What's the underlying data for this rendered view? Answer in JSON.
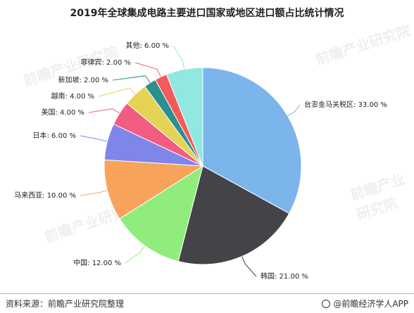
{
  "header": {
    "title": "2019年全球集成电路主要进口国家或地区进口额占比统计情况"
  },
  "watermark": {
    "text": "前瞻产业研究院"
  },
  "footer": {
    "source": "资料来源：前瞻产业研究院整理",
    "brand": "@前瞻经济学人APP"
  },
  "chart_data": {
    "type": "pie",
    "title": "2019年全球集成电路主要进口国家或地区进口额占比统计情况",
    "unit": "%",
    "start_angle_deg": 0,
    "direction": "clockwise",
    "slices": [
      {
        "label": "台澎金马关税区",
        "value": 33.0,
        "display": "台澎金马关税区: 33.00 %",
        "color": "#7cb5ec"
      },
      {
        "label": "韩国",
        "value": 21.0,
        "display": "韩国: 21.00 %",
        "color": "#434348"
      },
      {
        "label": "中国",
        "value": 12.0,
        "display": "中国: 12.00 %",
        "color": "#90ed7d"
      },
      {
        "label": "马来西亚",
        "value": 10.0,
        "display": "马来西亚: 10.00 %",
        "color": "#f7a35c"
      },
      {
        "label": "日本",
        "value": 6.0,
        "display": "日本: 6.00 %",
        "color": "#8085e9"
      },
      {
        "label": "美国",
        "value": 4.0,
        "display": "美国: 4.00 %",
        "color": "#f15c80"
      },
      {
        "label": "越南",
        "value": 4.0,
        "display": "越南: 4.00 %",
        "color": "#e4d354"
      },
      {
        "label": "新加坡",
        "value": 2.0,
        "display": "新加坡: 2.00 %",
        "color": "#2b908f"
      },
      {
        "label": "菲律宾",
        "value": 2.0,
        "display": "菲律宾: 2.00 %",
        "color": "#f45b5b"
      },
      {
        "label": "其他",
        "value": 6.0,
        "display": "其他: 6.00 %",
        "color": "#91e8e1"
      }
    ]
  }
}
